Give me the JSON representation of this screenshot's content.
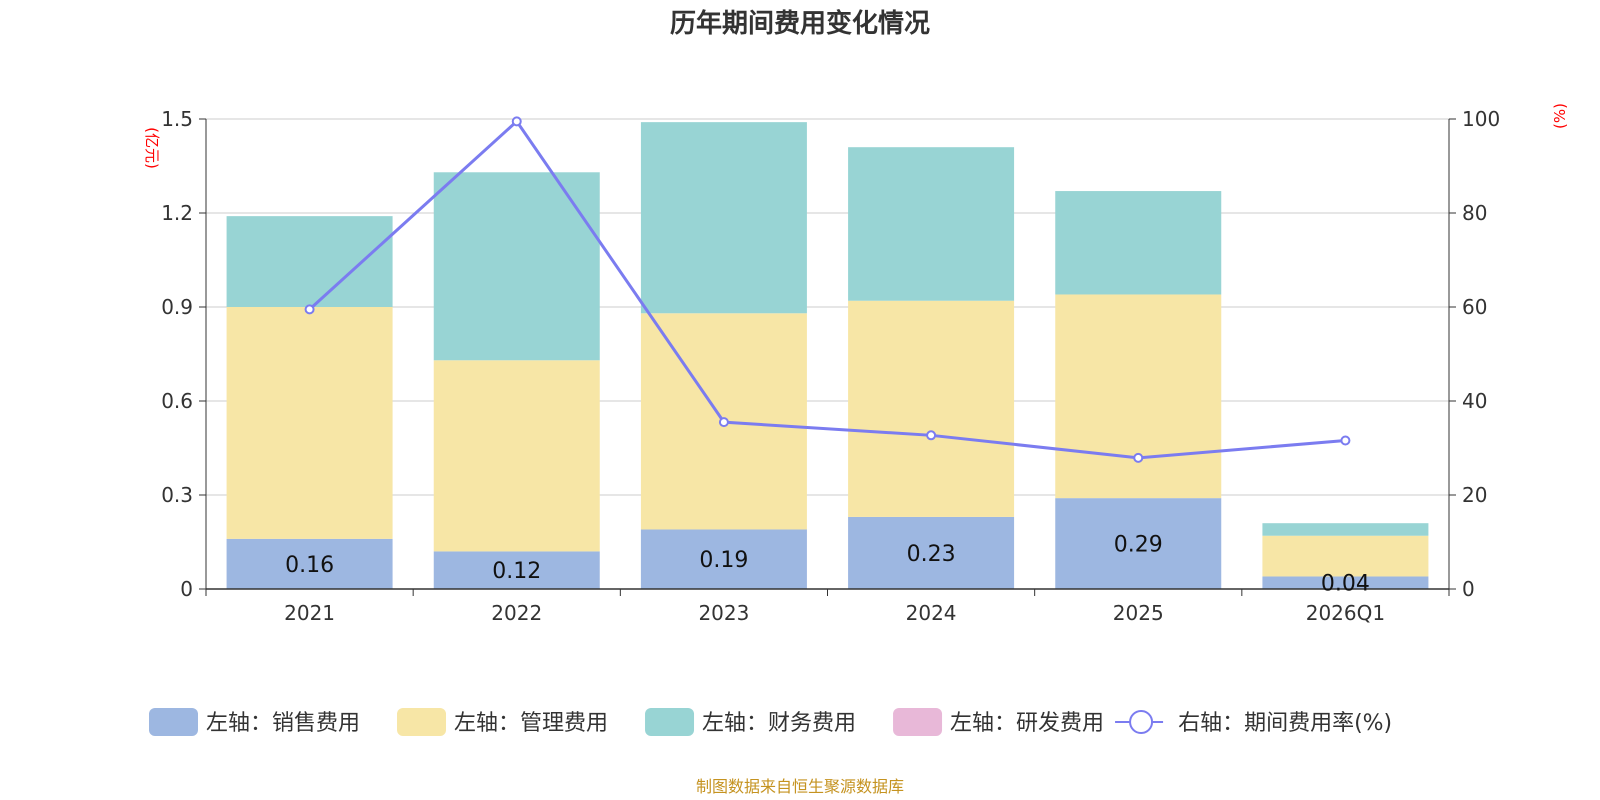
{
  "chart_data": {
    "type": "bar",
    "stacked": true,
    "title": "历年期间费用变化情况",
    "categories": [
      "2021",
      "2022",
      "2023",
      "2024",
      "2025",
      "2026Q1"
    ],
    "left_axis": {
      "unit_label": "(亿元)",
      "ylim": [
        0,
        1.5
      ],
      "ticks": [
        "0",
        "0.3",
        "0.6",
        "0.9",
        "1.2",
        "1.5"
      ]
    },
    "right_axis": {
      "unit_label": "(%)",
      "ylim": [
        0,
        100
      ],
      "ticks": [
        "0",
        "20",
        "40",
        "60",
        "80",
        "100"
      ]
    },
    "series": [
      {
        "name": "左轴：销售费用",
        "axis": "left",
        "kind": "bar",
        "color": "#9db7e1",
        "values": [
          0.16,
          0.12,
          0.19,
          0.23,
          0.29,
          0.04
        ],
        "labels": [
          "0.16",
          "0.12",
          "0.19",
          "0.23",
          "0.29",
          "0.04"
        ]
      },
      {
        "name": "左轴：管理费用",
        "axis": "left",
        "kind": "bar",
        "color": "#f7e6a6",
        "values": [
          0.74,
          0.61,
          0.69,
          0.69,
          0.65,
          0.13
        ]
      },
      {
        "name": "左轴：财务费用",
        "axis": "left",
        "kind": "bar",
        "color": "#98d4d4",
        "values": [
          0.29,
          0.6,
          0.61,
          0.49,
          0.33,
          0.04
        ]
      },
      {
        "name": "左轴：研发费用",
        "axis": "left",
        "kind": "bar",
        "color": "#e8b8d8",
        "values": [
          0,
          0,
          0,
          0,
          0,
          0
        ]
      },
      {
        "name": "右轴：期间费用率(%)",
        "axis": "right",
        "kind": "line",
        "color": "#7b7cf0",
        "values": [
          59.5,
          99.5,
          35.5,
          32.7,
          27.9,
          31.6
        ]
      }
    ],
    "legend_position": "bottom",
    "grid": true
  },
  "source_note": "制图数据来自恒生聚源数据库"
}
